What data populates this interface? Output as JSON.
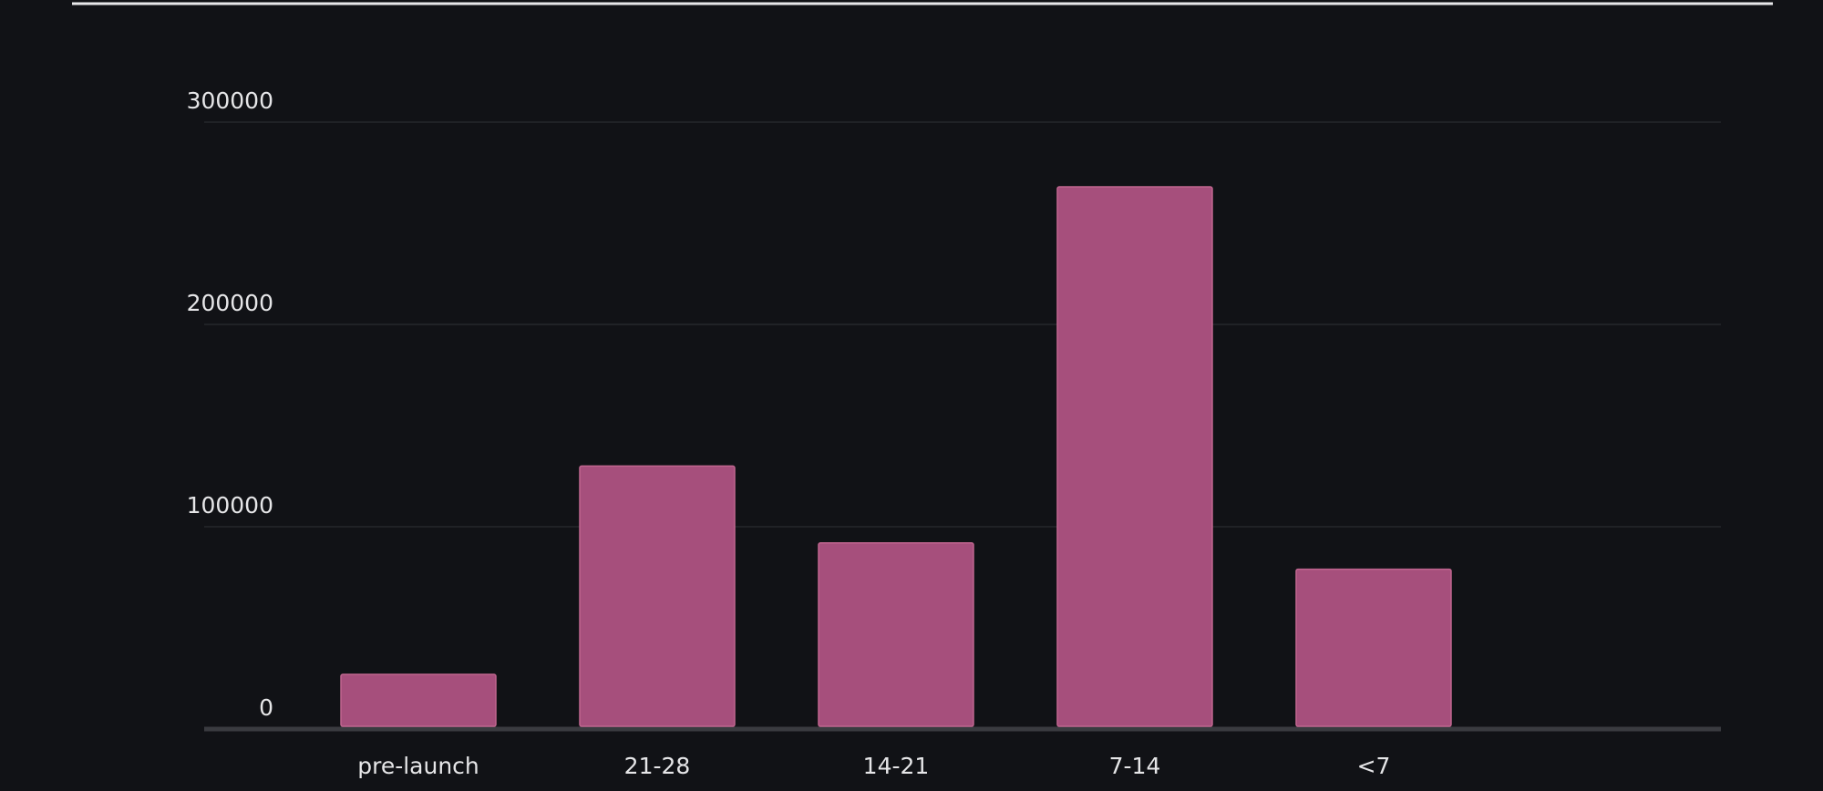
{
  "chart_data": {
    "type": "bar",
    "categories": [
      "pre-launch",
      "21-28",
      "14-21",
      "7-14",
      "<7"
    ],
    "values": [
      27000,
      130000,
      92000,
      268000,
      79000
    ],
    "color": "#a64f7c",
    "ylim": [
      0,
      300000
    ],
    "yticks": [
      0,
      100000,
      200000,
      300000
    ],
    "grid": true
  }
}
